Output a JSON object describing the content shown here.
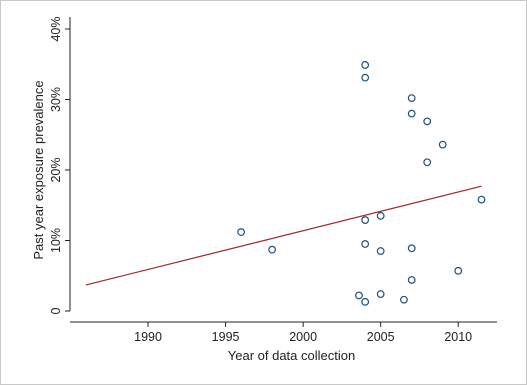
{
  "chart_data": {
    "type": "scatter",
    "title": "",
    "xlabel": "Year of data collection",
    "ylabel": "Past year exposure prevalence",
    "xlim": [
      1986,
      2012.5
    ],
    "ylim": [
      0,
      40
    ],
    "x_ticks": [
      1990,
      1995,
      2000,
      2005,
      2010
    ],
    "x_tick_labels": [
      "1990",
      "1995",
      "2000",
      "2005",
      "2010"
    ],
    "y_ticks": [
      0,
      10,
      20,
      30,
      40
    ],
    "y_tick_labels": [
      "0",
      "10%",
      "20%",
      "30%",
      "40%"
    ],
    "grid": false,
    "legend": "none",
    "points": [
      {
        "x": 1996.0,
        "y": 11.2
      },
      {
        "x": 1998.0,
        "y": 8.7
      },
      {
        "x": 2003.6,
        "y": 2.2
      },
      {
        "x": 2004.0,
        "y": 34.9
      },
      {
        "x": 2004.0,
        "y": 33.1
      },
      {
        "x": 2004.0,
        "y": 12.9
      },
      {
        "x": 2004.0,
        "y": 9.5
      },
      {
        "x": 2004.0,
        "y": 1.3
      },
      {
        "x": 2005.0,
        "y": 13.5
      },
      {
        "x": 2005.0,
        "y": 8.5
      },
      {
        "x": 2005.0,
        "y": 2.4
      },
      {
        "x": 2006.5,
        "y": 1.6
      },
      {
        "x": 2007.0,
        "y": 30.2
      },
      {
        "x": 2007.0,
        "y": 28.0
      },
      {
        "x": 2007.0,
        "y": 8.9
      },
      {
        "x": 2007.0,
        "y": 4.4
      },
      {
        "x": 2008.0,
        "y": 26.9
      },
      {
        "x": 2008.0,
        "y": 21.1
      },
      {
        "x": 2009.0,
        "y": 23.6
      },
      {
        "x": 2010.0,
        "y": 5.7
      },
      {
        "x": 2011.5,
        "y": 15.8
      }
    ],
    "fit_line": {
      "x": [
        1986,
        2011.5
      ],
      "y": [
        3.7,
        17.7
      ]
    },
    "colors": {
      "points": "#1f4e79",
      "fit_line": "#a32424",
      "axis": "#222222"
    }
  }
}
